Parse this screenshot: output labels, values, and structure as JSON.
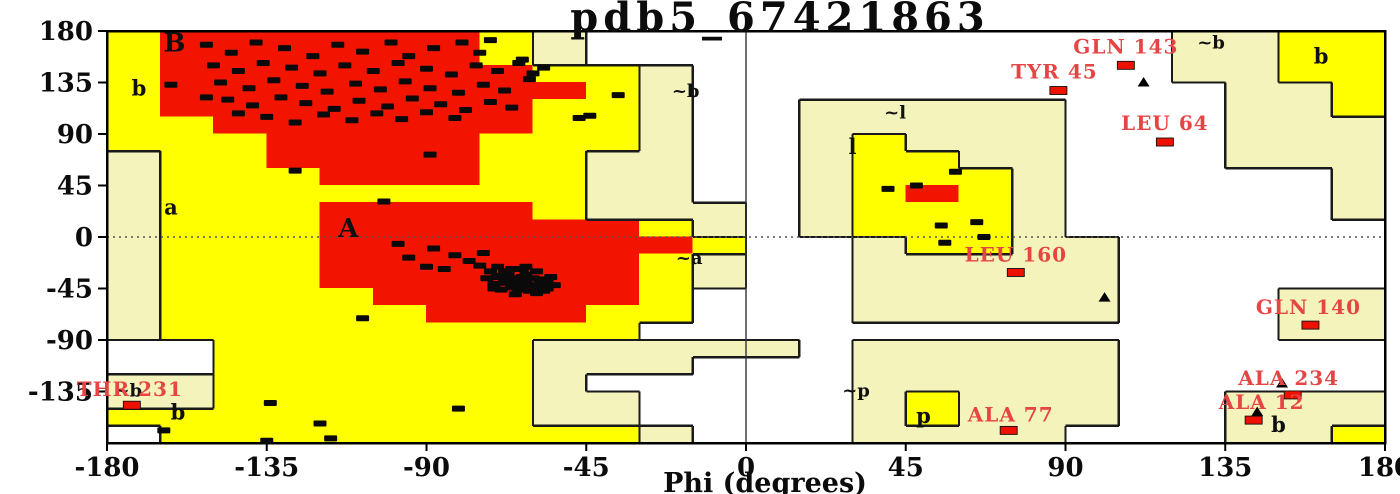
{
  "title": "pdb5_67421863",
  "xlabel": "Phi (degrees)",
  "chart_data": {
    "type": "scatter",
    "subtype": "ramachandran",
    "xlabel": "Phi (degrees)",
    "xlim": [
      -180,
      180
    ],
    "ylim": [
      -180,
      180
    ],
    "xticks": [
      "-180",
      "-135",
      "-90",
      "-45",
      "0",
      "45",
      "90",
      "135",
      "180"
    ],
    "yticks": [
      "180",
      "135",
      "90",
      "45",
      "0",
      "-45",
      "-90",
      "-135"
    ],
    "grid": "psi0-dotted, phi0-solid",
    "legend_position": "none",
    "colors": {
      "core": "#f31400",
      "allowed": "#ffff00",
      "generous": "#f3f3bb",
      "disallowed": "#ffffff",
      "marker": "#0a0a0a",
      "outlier_marker": "#ee1100",
      "outlier_text": "#e64545",
      "boundary": "#1a1a1a"
    },
    "region_grid": {
      "cell_deg": 15,
      "legend": {
        "r": "core",
        "y": "allowed",
        "g": "generous",
        ".": "disallowed"
      },
      "rows": [
        "yrrrrrryg...........ggyy",
        "yrrrrrryg...........ggyy",
        "yrrrrrrryyg.........ggyy",
        "yrrrrrrrryg..........ggy",
        "yrrrrrrryyg..ggggg...ggy",
        "yyrrrrrryyg..ggggg...ggg",
        "yyyrrrryyyg..gyggg...ggg",
        "gyyrrrryygg..gyygg...ggg",
        "gyyyrrryygg..gyyyg.....g",
        "gyyyyyyyygg..gyryg.....g",
        "gyyyrrrryggg.gyyyg.....g",
        "gyyyrrrrrryg.gyyyg......",
        "gyyyrrrrrrry..gyygg.....",
        "gyyyrrrrrryg..ggggg.....",
        "gyyyrrrrrryg..ggggg.....",
        "gyyyyrrrrry...ggggg...gg",
        "gyyyyyrrryy...ggggg...gg",
        "gyyyyyyyyy............gg",
        "..yyyyyyggggg.ggggg.....",
        "..yyyyyyggg...ggggg.....",
        "ggyyyyyyg.....ggggg.....",
        "ggyyyyyygg....gyggg..ggg",
        "yyyyyyyygg....gyggg..ggg",
        ".yyyyyyyyyg...gggg...ggy"
      ]
    },
    "region_labels": [
      {
        "t": "B",
        "phi": -161,
        "psi": 170,
        "size": 26
      },
      {
        "t": "b",
        "phi": -171,
        "psi": 130,
        "size": 21
      },
      {
        "t": "a",
        "phi": -162,
        "psi": 26,
        "size": 21
      },
      {
        "t": "A",
        "phi": -112,
        "psi": 8,
        "size": 26
      },
      {
        "t": "~a",
        "phi": -16,
        "psi": -18,
        "size": 18
      },
      {
        "t": "~b",
        "phi": -17,
        "psi": 128,
        "size": 18
      },
      {
        "t": "~b",
        "phi": 131,
        "psi": 170,
        "size": 18
      },
      {
        "t": "b",
        "phi": 162,
        "psi": 158,
        "size": 21
      },
      {
        "t": "~l",
        "phi": 42,
        "psi": 109,
        "size": 18
      },
      {
        "t": "l",
        "phi": 30,
        "psi": 79,
        "size": 21
      },
      {
        "t": "~p",
        "phi": 31,
        "psi": -134,
        "size": 18
      },
      {
        "t": "p",
        "phi": 50,
        "psi": -156,
        "size": 21
      },
      {
        "t": "b",
        "phi": -160,
        "psi": -153,
        "size": 21
      },
      {
        "t": "~b",
        "phi": -174,
        "psi": -134,
        "size": 18
      },
      {
        "t": "b",
        "phi": 150,
        "psi": -164,
        "size": 21
      }
    ],
    "residues_squares": [
      [
        -152,
        168
      ],
      [
        -145,
        161
      ],
      [
        -138,
        170
      ],
      [
        -130,
        165
      ],
      [
        -122,
        158
      ],
      [
        -115,
        168
      ],
      [
        -108,
        162
      ],
      [
        -100,
        170
      ],
      [
        -95,
        158
      ],
      [
        -88,
        165
      ],
      [
        -80,
        170
      ],
      [
        -75,
        161
      ],
      [
        -72,
        172
      ],
      [
        -150,
        150
      ],
      [
        -143,
        145
      ],
      [
        -136,
        152
      ],
      [
        -128,
        148
      ],
      [
        -120,
        143
      ],
      [
        -113,
        150
      ],
      [
        -105,
        145
      ],
      [
        -98,
        152
      ],
      [
        -90,
        147
      ],
      [
        -83,
        142
      ],
      [
        -76,
        150
      ],
      [
        -70,
        145
      ],
      [
        -64,
        152
      ],
      [
        -148,
        135
      ],
      [
        -140,
        130
      ],
      [
        -133,
        137
      ],
      [
        -125,
        132
      ],
      [
        -118,
        127
      ],
      [
        -110,
        134
      ],
      [
        -103,
        129
      ],
      [
        -96,
        136
      ],
      [
        -89,
        130
      ],
      [
        -81,
        126
      ],
      [
        -74,
        133
      ],
      [
        -68,
        128
      ],
      [
        -61,
        138
      ],
      [
        -146,
        120
      ],
      [
        -139,
        115
      ],
      [
        -131,
        122
      ],
      [
        -124,
        117
      ],
      [
        -116,
        112
      ],
      [
        -109,
        119
      ],
      [
        -101,
        114
      ],
      [
        -94,
        121
      ],
      [
        -86,
        116
      ],
      [
        -79,
        111
      ],
      [
        -72,
        118
      ],
      [
        -66,
        113
      ],
      [
        -135,
        105
      ],
      [
        -127,
        100
      ],
      [
        -119,
        107
      ],
      [
        -111,
        102
      ],
      [
        -104,
        108
      ],
      [
        -97,
        103
      ],
      [
        -90,
        109
      ],
      [
        -82,
        104
      ],
      [
        -143,
        108
      ],
      [
        -152,
        122
      ],
      [
        -60,
        143
      ],
      [
        -63,
        155
      ],
      [
        -57,
        148
      ],
      [
        -89,
        72
      ],
      [
        -127,
        58
      ],
      [
        -102,
        31
      ],
      [
        -47,
        104
      ],
      [
        -44,
        106
      ],
      [
        -36,
        124
      ],
      [
        -162,
        133
      ],
      [
        -75,
        -25
      ],
      [
        -72,
        -30
      ],
      [
        -70,
        -35
      ],
      [
        -68,
        -40
      ],
      [
        -66,
        -44
      ],
      [
        -64,
        -38
      ],
      [
        -62,
        -33
      ],
      [
        -60,
        -42
      ],
      [
        -58,
        -37
      ],
      [
        -56,
        -45
      ],
      [
        -63,
        -28
      ],
      [
        -67,
        -32
      ],
      [
        -71,
        -41
      ],
      [
        -59,
        -30
      ],
      [
        -57,
        -40
      ],
      [
        -65,
        -50
      ],
      [
        -61,
        -47
      ],
      [
        -69,
        -46
      ],
      [
        -73,
        -36
      ],
      [
        -55,
        -35
      ],
      [
        -62,
        -39
      ],
      [
        -66,
        -36
      ],
      [
        -64,
        -42
      ],
      [
        -60,
        -36
      ],
      [
        -58,
        -44
      ],
      [
        -68,
        -30
      ],
      [
        -70,
        -26
      ],
      [
        -56,
        -39
      ],
      [
        -54,
        -42
      ],
      [
        -65,
        -41
      ],
      [
        -63,
        -35
      ],
      [
        -61,
        -44
      ],
      [
        -67,
        -38
      ],
      [
        -69,
        -34
      ],
      [
        -57,
        -47
      ],
      [
        -59,
        -49
      ],
      [
        -71,
        -45
      ],
      [
        -66,
        -28
      ],
      [
        -62,
        -26
      ],
      [
        -64,
        -46
      ],
      [
        -95,
        -18
      ],
      [
        -88,
        -10
      ],
      [
        -82,
        -16
      ],
      [
        -85,
        -28
      ],
      [
        -78,
        -21
      ],
      [
        -98,
        -6
      ],
      [
        -90,
        -26
      ],
      [
        -74,
        -14
      ],
      [
        48,
        45
      ],
      [
        59,
        57
      ],
      [
        40,
        42
      ],
      [
        55,
        10
      ],
      [
        65,
        13
      ],
      [
        56,
        -5
      ],
      [
        67,
        0
      ],
      [
        -135,
        -178
      ],
      [
        -117,
        -176
      ],
      [
        -164,
        -169
      ],
      [
        -134,
        -145
      ],
      [
        -120,
        -163
      ],
      [
        -81,
        -150
      ],
      [
        -108,
        -71
      ]
    ],
    "glycine_triangles": [
      [
        112,
        135
      ],
      [
        101,
        -53
      ],
      [
        151,
        -128
      ],
      [
        144,
        -153
      ]
    ],
    "outliers": [
      {
        "label": "GLN 143",
        "phi": 107,
        "psi": 150,
        "dx": 0,
        "dy": -12
      },
      {
        "label": "TYR 45",
        "phi": 88,
        "psi": 128,
        "dx": -4,
        "dy": -12
      },
      {
        "label": "LEU 64",
        "phi": 118,
        "psi": 83,
        "dx": 0,
        "dy": -12
      },
      {
        "label": "LEU 160",
        "phi": 76,
        "psi": -31,
        "dx": 0,
        "dy": -11
      },
      {
        "label": "GLN 140",
        "phi": 159,
        "psi": -77,
        "dx": -2,
        "dy": -11
      },
      {
        "label": "ALA 234",
        "phi": 154,
        "psi": -138,
        "dx": -4,
        "dy": -10
      },
      {
        "label": "ALA 12",
        "phi": 143,
        "psi": -160,
        "dx": 8,
        "dy": -11
      },
      {
        "label": "ALA 77",
        "phi": 74,
        "psi": -169,
        "dx": 2,
        "dy": -9
      },
      {
        "label": "THR 231",
        "phi": -173,
        "psi": -147,
        "dx": -2,
        "dy": -9
      }
    ]
  }
}
